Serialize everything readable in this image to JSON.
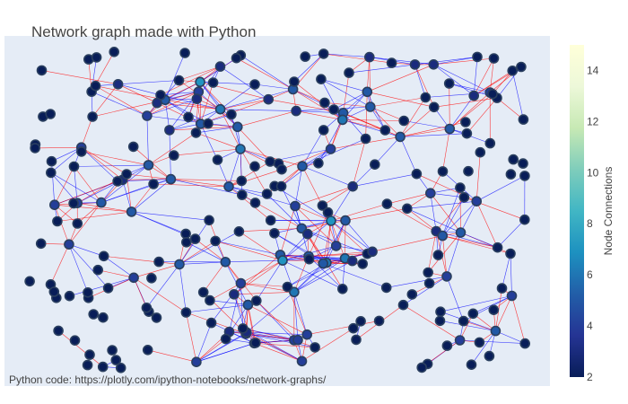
{
  "chart_data": {
    "type": "scatter",
    "title": "Network graph made with Python",
    "annotation": "Python code:  https://plotly.com/ipython-notebooks/network-graphs/",
    "xlim": [
      0,
      1
    ],
    "ylim": [
      0,
      1
    ],
    "grid": false,
    "axes_visible": false,
    "colorbar": {
      "title": "Node Connections",
      "colorscale": "YlGnBu (reversed)",
      "range": [
        2,
        15
      ],
      "tickvals": [
        2,
        4,
        6,
        8,
        10,
        12,
        14
      ],
      "ticklabels": [
        "2",
        "4",
        "6",
        "8",
        "10",
        "12",
        "14"
      ]
    },
    "series": [
      {
        "name": "edges",
        "mode": "lines",
        "colors": [
          "#ff0000",
          "#0000ff"
        ],
        "edge_count": 560
      },
      {
        "name": "nodes",
        "mode": "markers",
        "marker_line_color": "#2a3f5f",
        "node_count": 240,
        "connections_range": [
          2,
          15
        ]
      }
    ]
  }
}
